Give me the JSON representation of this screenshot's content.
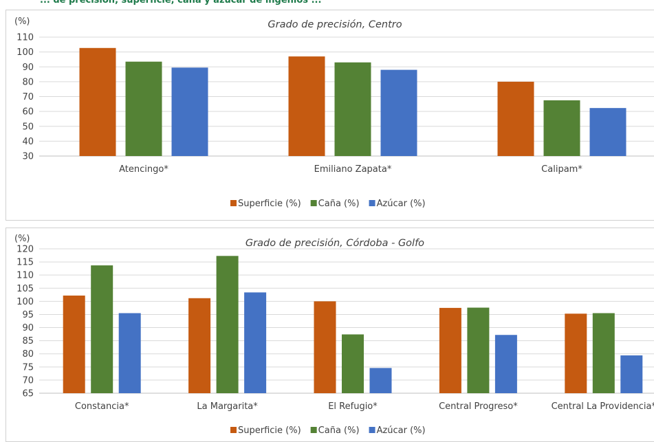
{
  "header": {
    "text": "... de precisión, superficie, caña y azúcar de ingenios ..."
  },
  "colors": {
    "superficie": "#c55a11",
    "cana": "#548235",
    "azucar": "#4472c4",
    "grid": "#d9d9d9",
    "axis": "#bfbfbf"
  },
  "chart_data": [
    {
      "type": "bar",
      "title": "Grado de precisión, Centro",
      "ylabel": "(%)",
      "ylim": [
        30,
        110
      ],
      "yticks": [
        30,
        40,
        50,
        60,
        70,
        80,
        90,
        100,
        110
      ],
      "grid": true,
      "legend_position": "bottom",
      "categories": [
        "Atencingo*",
        "Emiliano Zapata*",
        "Calipam*"
      ],
      "series": [
        {
          "name": "Superficie (%)",
          "values": [
            102.7,
            97.0,
            80.0
          ]
        },
        {
          "name": "Caña (%)",
          "values": [
            93.5,
            93.0,
            67.5
          ]
        },
        {
          "name": "Azúcar (%)",
          "values": [
            89.5,
            88.0,
            62.3
          ]
        }
      ]
    },
    {
      "type": "bar",
      "title": "Grado de precisión, Córdoba - Golfo",
      "ylabel": "(%)",
      "ylim": [
        65,
        120
      ],
      "yticks": [
        65,
        70,
        75,
        80,
        85,
        90,
        95,
        100,
        105,
        110,
        115,
        120
      ],
      "grid": true,
      "legend_position": "bottom",
      "categories": [
        "Constancia*",
        "La Margarita*",
        "El Refugio*",
        "Central Progreso*",
        "Central La Providencia*"
      ],
      "series": [
        {
          "name": "Superficie (%)",
          "values": [
            102.2,
            101.2,
            100.0,
            97.5,
            95.3
          ]
        },
        {
          "name": "Caña (%)",
          "values": [
            113.7,
            117.3,
            87.4,
            97.6,
            95.5
          ]
        },
        {
          "name": "Azúcar (%)",
          "values": [
            95.5,
            103.4,
            74.6,
            87.2,
            79.4
          ]
        }
      ]
    }
  ]
}
